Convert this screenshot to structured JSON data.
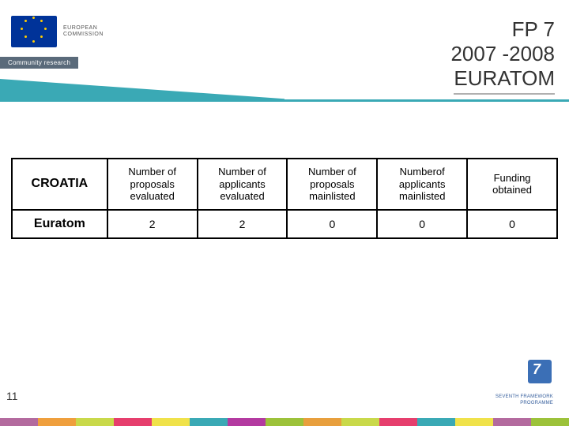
{
  "header": {
    "ec_label_line1": "EUROPEAN",
    "ec_label_line2": "COMMISSION",
    "research_tag": "Community research",
    "title_line1": "FP 7",
    "title_line2": "2007 -2008",
    "title_line3": "EURATOM",
    "teal_color": "#3aa9b5"
  },
  "table": {
    "row_header1": "CROATIA",
    "row_header2": "Euratom",
    "columns": [
      "Number of proposals evaluated",
      "Number of applicants evaluated",
      "Number of proposals mainlisted",
      "Numberof applicants mainlisted",
      "Funding obtained"
    ],
    "values": [
      "2",
      "2",
      "0",
      "0",
      "0"
    ],
    "col_widths_pct": [
      17.5,
      16.5,
      16.5,
      16.5,
      16.5,
      16.5
    ],
    "border_color": "#000000",
    "header_fontsize": 13,
    "cell_fontsize": 14,
    "rowhead_fontsize": 16
  },
  "page_number": "11",
  "fp7": {
    "glyph": "7",
    "sub_line1": "SEVENTH FRAMEWORK",
    "sub_line2": "PROGRAMME",
    "square_color": "#3b6fb6"
  },
  "bottom_bar_colors": [
    "#b36a9e",
    "#ef9f3d",
    "#c9d94a",
    "#e63e6d",
    "#f0e24a",
    "#3aa9b5",
    "#b33aa0",
    "#9cc23a",
    "#e89f3d",
    "#c9d94a",
    "#e63e6d",
    "#3aa9b5",
    "#f0e24a",
    "#b36a9e",
    "#9cc23a"
  ],
  "background_color": "#ffffff"
}
